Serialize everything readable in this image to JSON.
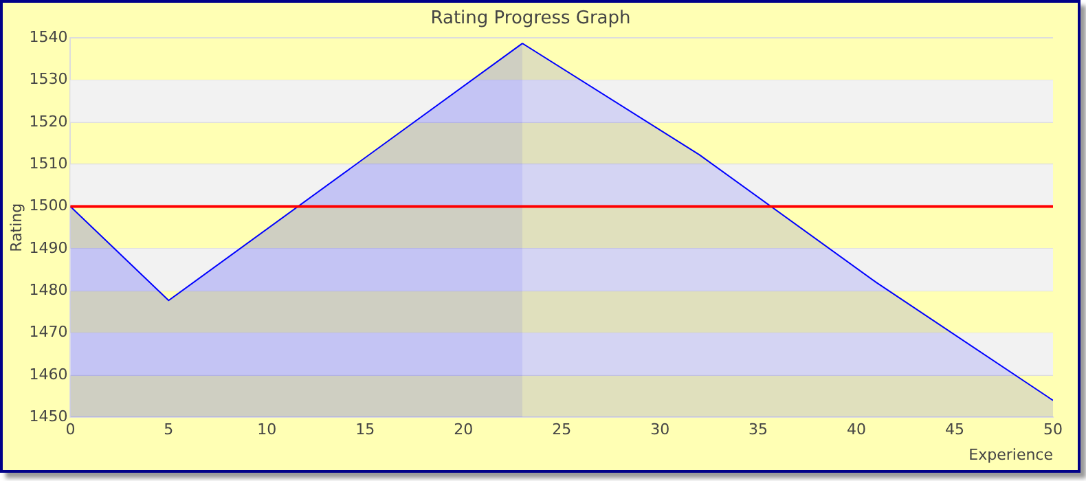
{
  "chart_data": {
    "type": "area",
    "title": "Rating Progress Graph",
    "xlabel": "Experience",
    "ylabel": "Rating",
    "series": [
      {
        "color": "#0000ff",
        "x": [
          0,
          5,
          23
        ],
        "values": [
          1500,
          1477.7,
          1538.7
        ]
      },
      {
        "color": "#0000ff",
        "x": [
          23,
          32,
          41,
          50
        ],
        "values": [
          1538.7,
          1512.3,
          1482,
          1454
        ]
      }
    ],
    "xlim": [
      0,
      50
    ],
    "xticks": [
      0,
      5,
      10,
      15,
      20,
      25,
      30,
      35,
      40,
      45,
      50
    ],
    "ylim": [
      1450,
      1540
    ],
    "yticks": [
      1450,
      1460,
      1470,
      1480,
      1490,
      1500,
      1510,
      1520,
      1530,
      1540
    ],
    "ref_lines": [
      {
        "axis": "y",
        "value": 1500,
        "color": "#ff0000"
      }
    ],
    "grid": "y",
    "legend": false,
    "marker": "none",
    "line_style": "solid"
  }
}
